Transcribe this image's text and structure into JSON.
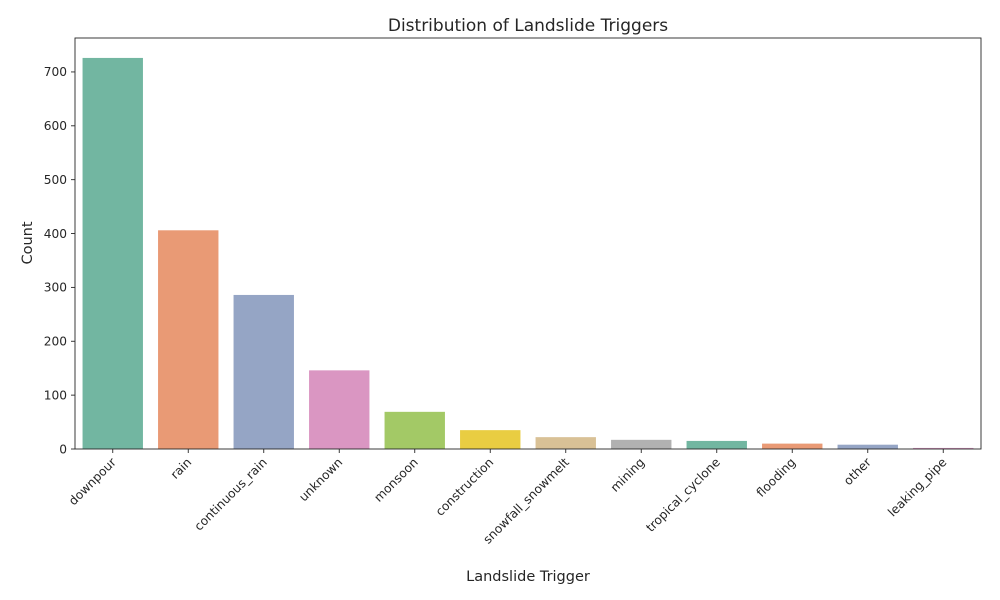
{
  "chart_data": {
    "type": "bar",
    "title": "Distribution of Landslide Triggers",
    "xlabel": "Landslide Trigger",
    "ylabel": "Count",
    "ylim": [
      0,
      763
    ],
    "yticks": [
      0,
      100,
      200,
      300,
      400,
      500,
      600,
      700
    ],
    "grid": false,
    "legend": "none",
    "categories": [
      "downpour",
      "rain",
      "continuous_rain",
      "unknown",
      "monsoon",
      "construction",
      "snowfall_snowmelt",
      "mining",
      "tropical_cyclone",
      "flooding",
      "other",
      "leaking_pipe"
    ],
    "values": [
      726,
      406,
      286,
      146,
      69,
      35,
      22,
      17,
      15,
      10,
      8,
      2
    ],
    "colors": [
      "#72b6a1",
      "#e99a75",
      "#95a5c5",
      "#da96c2",
      "#a3c966",
      "#e9cd42",
      "#d9c196",
      "#b1b1b1",
      "#72b6a1",
      "#e99a75",
      "#95a5c5",
      "#da96c2"
    ]
  }
}
